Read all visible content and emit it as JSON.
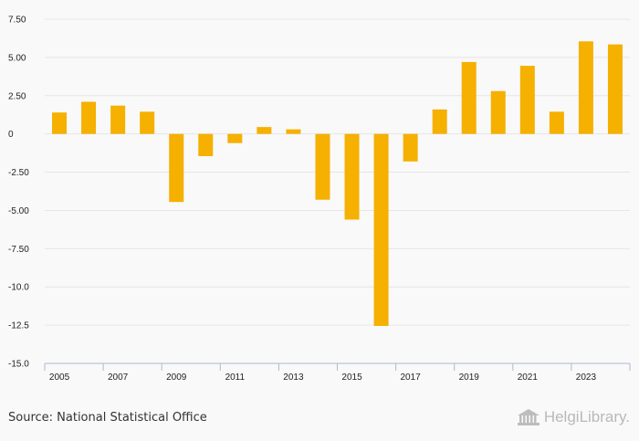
{
  "chart_data": {
    "type": "bar",
    "title": "",
    "xlabel": "",
    "ylabel": "",
    "categories": [
      "2005",
      "2006",
      "2007",
      "2008",
      "2009",
      "2010",
      "2011",
      "2012",
      "2013",
      "2014",
      "2015",
      "2016",
      "2017",
      "2018",
      "2019",
      "2020",
      "2021",
      "2022",
      "2023",
      "2024"
    ],
    "values": [
      1.4,
      2.1,
      1.85,
      1.45,
      -4.45,
      -1.45,
      -0.6,
      0.45,
      0.3,
      -4.3,
      -5.6,
      -12.55,
      -1.8,
      1.6,
      4.7,
      2.8,
      4.45,
      1.45,
      6.05,
      5.85
    ],
    "ylim": [
      -15,
      7.5
    ],
    "y_ticks": [
      "7.50",
      "5.00",
      "2.50",
      "0",
      "-2.50",
      "-5.00",
      "-7.50",
      "-10.0",
      "-12.5",
      "-15.0"
    ],
    "y_tick_values": [
      7.5,
      5,
      2.5,
      0,
      -2.5,
      -5,
      -7.5,
      -10,
      -12.5,
      -15
    ],
    "x_tick_labels": [
      "2005",
      "2007",
      "2009",
      "2011",
      "2013",
      "2015",
      "2017",
      "2019",
      "2021",
      "2023"
    ],
    "grid": true,
    "bar_color": "#f5b000",
    "grid_color": "#e6e6e6"
  },
  "footer": {
    "source": "Source: National Statistical Office",
    "brand": "HelgiLibrary."
  }
}
